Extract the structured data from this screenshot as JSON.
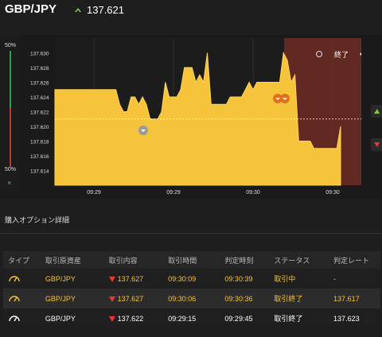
{
  "header": {
    "pair": "GBP/JPY",
    "price": "137.621",
    "trend_icon": "up-arrow-icon",
    "trend_color": "#8bc34a"
  },
  "gauge": {
    "top_label": "50%",
    "bottom_label": "50%",
    "close_label": "×"
  },
  "chart_data": {
    "type": "area",
    "y_ticks": [
      "137.630",
      "137.628",
      "137.626",
      "137.624",
      "137.622",
      "137.620",
      "137.618",
      "137.616",
      "137.614"
    ],
    "x_ticks": [
      "09:29",
      "09:29",
      "09:30",
      "09:30"
    ],
    "ylim": [
      137.612,
      137.632
    ],
    "current_price": 137.621,
    "fill_color": "#f5c43a",
    "expired_label": "終了",
    "series": [
      {
        "values": [
          137.625,
          137.625,
          137.625,
          137.625,
          137.625,
          137.625,
          137.625,
          137.625,
          137.625,
          137.625,
          137.625,
          137.625,
          137.625,
          137.625,
          137.625,
          137.625,
          137.625,
          137.623,
          137.622,
          137.622,
          137.624,
          137.624,
          137.623,
          137.624,
          137.623,
          137.621,
          137.621,
          137.621,
          137.622,
          137.626,
          137.624,
          137.624,
          137.624,
          137.625,
          137.628,
          137.628,
          137.628,
          137.626,
          137.627,
          137.626,
          137.63,
          137.623,
          137.623,
          137.623,
          137.623,
          137.623,
          137.624,
          137.624,
          137.624,
          137.624,
          137.625,
          137.626,
          137.625,
          137.626,
          137.626,
          137.626,
          137.626,
          137.626,
          137.626,
          137.626,
          137.63,
          137.629,
          137.626,
          137.627,
          137.618,
          137.618,
          137.618,
          137.618,
          137.617,
          137.617,
          137.617,
          137.617,
          137.617,
          137.617,
          137.617,
          137.62
        ]
      }
    ]
  },
  "section": {
    "title": "購入オプション詳細"
  },
  "table": {
    "headers": [
      "タイプ",
      "取引原資産",
      "取引内容",
      "取引時間",
      "判定時刻",
      "ステータス",
      "判定レート"
    ],
    "rows": [
      {
        "asset": "GBP/JPY",
        "content": "137.627",
        "time": "09:30:09",
        "judge": "09:30:39",
        "status": "取引中",
        "rate": "-"
      },
      {
        "asset": "GBP/JPY",
        "content": "137.627",
        "time": "09:30:06",
        "judge": "09:30:36",
        "status": "取引終了",
        "rate": "137.617"
      },
      {
        "asset": "GBP/JPY",
        "content": "137.622",
        "time": "09:29:15",
        "judge": "09:29:45",
        "status": "取引終了",
        "rate": "137.623"
      }
    ]
  }
}
